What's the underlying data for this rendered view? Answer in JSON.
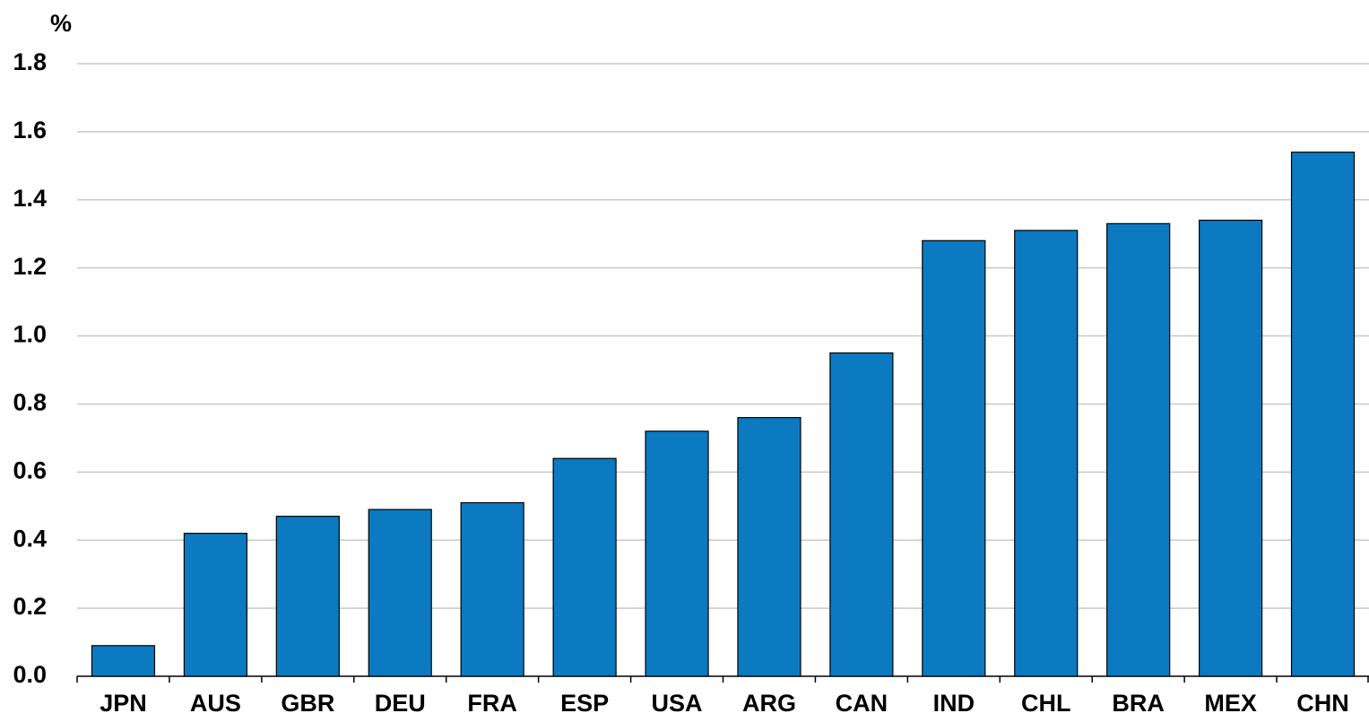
{
  "chart_data": {
    "type": "bar",
    "y_label": "%",
    "categories": [
      "JPN",
      "AUS",
      "GBR",
      "DEU",
      "FRA",
      "ESP",
      "USA",
      "ARG",
      "CAN",
      "IND",
      "CHL",
      "BRA",
      "MEX",
      "CHN"
    ],
    "values": [
      0.09,
      0.42,
      0.47,
      0.49,
      0.51,
      0.64,
      0.72,
      0.76,
      0.95,
      1.28,
      1.31,
      1.33,
      1.34,
      1.54
    ],
    "color": "#0b7ac1",
    "ylim": [
      0,
      1.8
    ],
    "yticks": [
      {
        "value": 0,
        "label": "0.0"
      },
      0.2,
      0.4,
      0.6,
      0.8,
      {
        "value": 1,
        "label": "1.0"
      },
      1.2,
      1.4,
      1.6,
      1.8
    ],
    "grid": true
  }
}
